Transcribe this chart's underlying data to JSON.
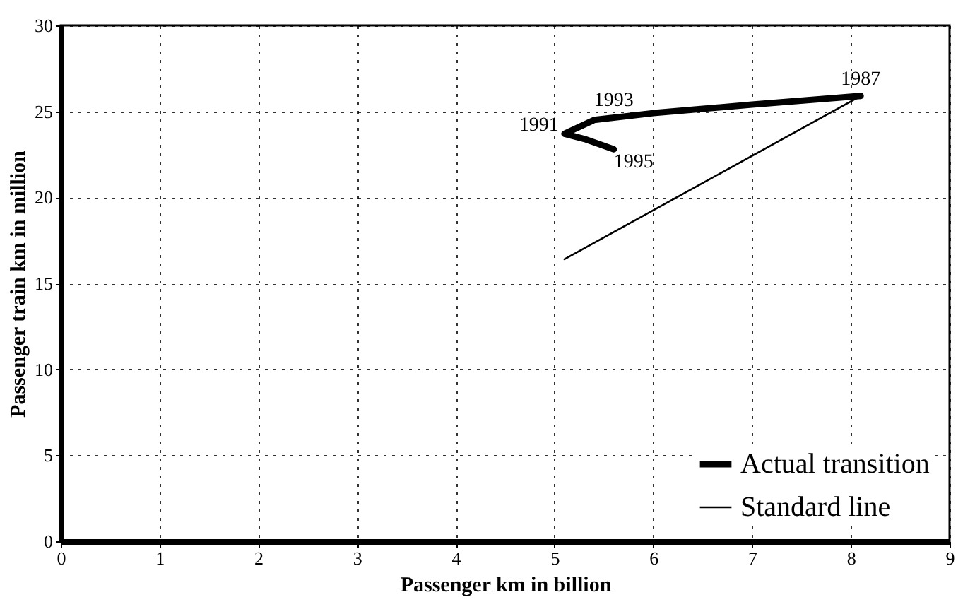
{
  "chart_data": {
    "type": "line",
    "xlabel": "Passenger km in billion",
    "ylabel": "Passenger train km in million",
    "xlim": [
      0,
      9
    ],
    "xticks": [
      0,
      1,
      2,
      3,
      4,
      5,
      6,
      7,
      8,
      9
    ],
    "ylim": [
      0,
      30
    ],
    "yticks": [
      0,
      5,
      10,
      15,
      20,
      25,
      30
    ],
    "series": [
      {
        "name": "Actual transition",
        "color": "#000000",
        "x": [
          8.1,
          7,
          6,
          5.4,
          5.1,
          5.3,
          5.6
        ],
        "values": [
          25.9,
          25.4,
          24.9,
          24.5,
          23.7,
          23.4,
          22.8
        ]
      },
      {
        "name": "Standard line",
        "color": "#000000",
        "x": [
          5.1,
          8.1
        ],
        "values": [
          16.4,
          25.9
        ]
      }
    ],
    "annotations": [
      {
        "text": "1987",
        "x": 8.1,
        "y": 25.9
      },
      {
        "text": "1991",
        "x": 5.1,
        "y": 23.7
      },
      {
        "text": "1993",
        "x": 5.6,
        "y": 24.5
      },
      {
        "text": "1995",
        "x": 5.4,
        "y": 23.2
      }
    ],
    "grid": true,
    "legend": "bottom right",
    "marker": "none",
    "line_style": "solid"
  }
}
